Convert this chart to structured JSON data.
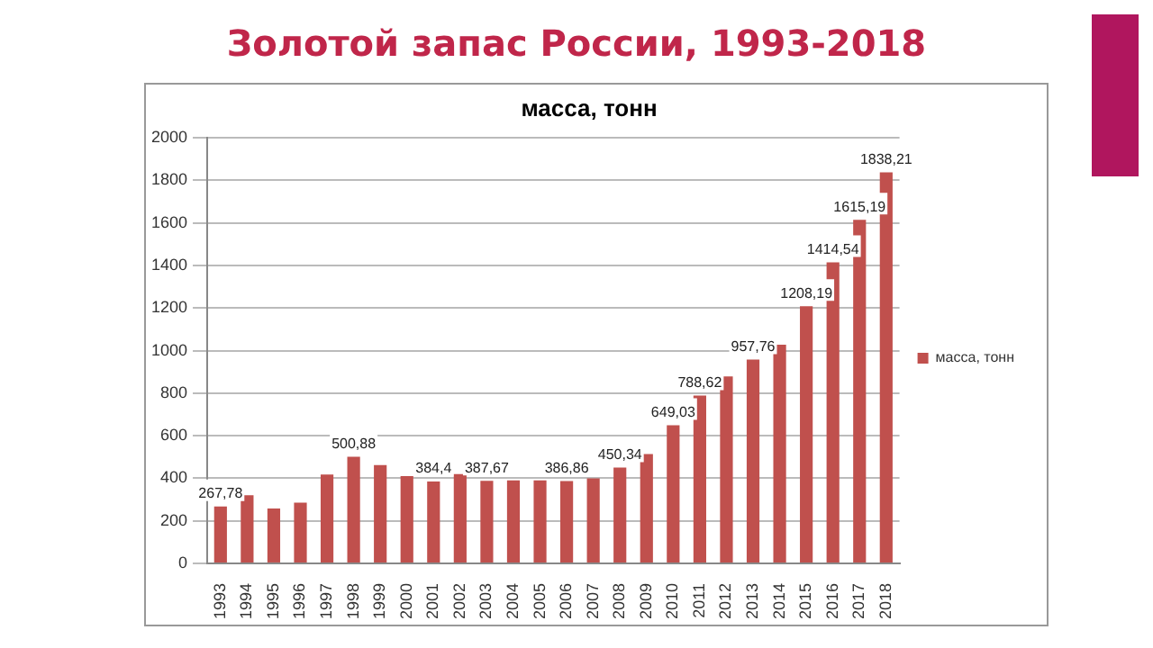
{
  "chart_data": {
    "type": "bar",
    "title": "Золотой запас России, 1993-2018",
    "subtitle": "масса, тонн",
    "categories": [
      "1993",
      "1994",
      "1995",
      "1996",
      "1997",
      "1998",
      "1999",
      "2000",
      "2001",
      "2002",
      "2003",
      "2004",
      "2005",
      "2006",
      "2007",
      "2008",
      "2009",
      "2010",
      "2011",
      "2012",
      "2013",
      "2014",
      "2015",
      "2016",
      "2017",
      "2018"
    ],
    "series": [
      {
        "name": "масса, тонн",
        "color": "#c0504d",
        "values": [
          267.78,
          320,
          258,
          285,
          418,
          500.88,
          462,
          410,
          384.4,
          420,
          387.67,
          390,
          390,
          386.86,
          400,
          450.34,
          514,
          649.03,
          788.62,
          879,
          957.76,
          1028,
          1208.19,
          1414.54,
          1615.19,
          1838.21
        ],
        "value_labels": [
          "267,78",
          null,
          null,
          null,
          null,
          "500,88",
          null,
          null,
          "384,4",
          null,
          "387,67",
          null,
          null,
          "386,86",
          null,
          "450,34",
          null,
          "649,03",
          "788,62",
          null,
          "957,76",
          null,
          "1208,19",
          "1414,54",
          "1615,19",
          "1838,21"
        ]
      }
    ],
    "ylim": [
      0,
      2000
    ],
    "yticks": [
      0,
      200,
      400,
      600,
      800,
      1000,
      1200,
      1400,
      1600,
      1800,
      2000
    ],
    "grid": "y",
    "legend": "right"
  }
}
